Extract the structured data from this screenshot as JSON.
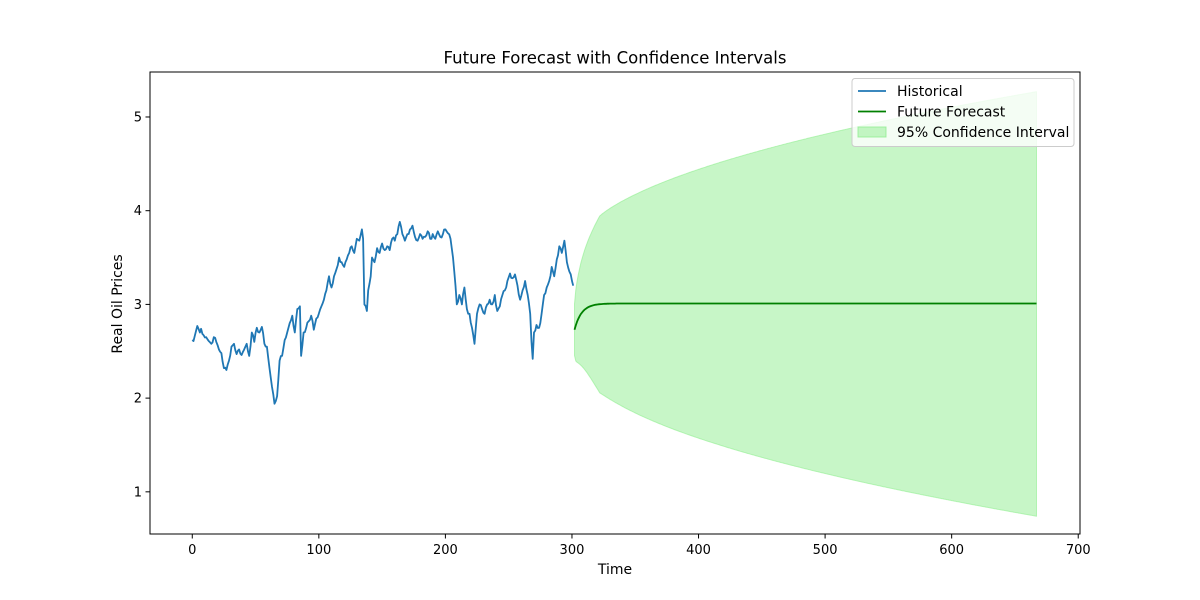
{
  "chart_data": {
    "type": "line",
    "title": "Future Forecast with Confidence Intervals",
    "xlabel": "Time",
    "ylabel": "Real Oil Prices",
    "xlim": [
      -33.4,
      701.4
    ],
    "ylim": [
      0.55,
      5.48
    ],
    "xticks": [
      0,
      100,
      200,
      300,
      400,
      500,
      600,
      700
    ],
    "yticks": [
      1,
      2,
      3,
      4,
      5
    ],
    "grid": false,
    "legend_position": "upper-right",
    "colors": {
      "historical": "#1f77b4",
      "forecast": "#008000",
      "ci_fill": "#90ee90"
    },
    "legend": [
      "Historical",
      "Future Forecast",
      "95% Confidence Interval"
    ],
    "historical_anchors": [
      [
        0,
        2.62
      ],
      [
        1,
        2.61
      ],
      [
        3,
        2.72
      ],
      [
        4,
        2.77
      ],
      [
        6,
        2.7
      ],
      [
        7,
        2.74
      ],
      [
        9,
        2.67
      ],
      [
        11,
        2.65
      ],
      [
        13,
        2.61
      ],
      [
        15,
        2.58
      ],
      [
        17,
        2.65
      ],
      [
        19,
        2.6
      ],
      [
        21,
        2.52
      ],
      [
        23,
        2.48
      ],
      [
        25,
        2.32
      ],
      [
        27,
        2.3
      ],
      [
        29,
        2.4
      ],
      [
        31,
        2.55
      ],
      [
        33,
        2.58
      ],
      [
        35,
        2.47
      ],
      [
        37,
        2.52
      ],
      [
        39,
        2.46
      ],
      [
        41,
        2.52
      ],
      [
        43,
        2.58
      ],
      [
        45,
        2.45
      ],
      [
        47,
        2.7
      ],
      [
        49,
        2.6
      ],
      [
        51,
        2.75
      ],
      [
        53,
        2.7
      ],
      [
        55,
        2.76
      ],
      [
        57,
        2.58
      ],
      [
        59,
        2.55
      ],
      [
        61,
        2.32
      ],
      [
        63,
        2.12
      ],
      [
        65,
        1.94
      ],
      [
        67,
        2.02
      ],
      [
        69,
        2.4
      ],
      [
        71,
        2.45
      ],
      [
        73,
        2.62
      ],
      [
        75,
        2.7
      ],
      [
        77,
        2.8
      ],
      [
        79,
        2.88
      ],
      [
        81,
        2.7
      ],
      [
        83,
        2.95
      ],
      [
        85,
        2.98
      ],
      [
        86,
        2.45
      ],
      [
        88,
        2.7
      ],
      [
        90,
        2.75
      ],
      [
        92,
        2.82
      ],
      [
        94,
        2.88
      ],
      [
        96,
        2.73
      ],
      [
        98,
        2.85
      ],
      [
        100,
        2.9
      ],
      [
        102,
        2.98
      ],
      [
        104,
        3.05
      ],
      [
        106,
        3.15
      ],
      [
        108,
        3.3
      ],
      [
        110,
        3.18
      ],
      [
        112,
        3.3
      ],
      [
        114,
        3.38
      ],
      [
        116,
        3.5
      ],
      [
        118,
        3.45
      ],
      [
        120,
        3.4
      ],
      [
        122,
        3.48
      ],
      [
        124,
        3.55
      ],
      [
        126,
        3.62
      ],
      [
        128,
        3.55
      ],
      [
        130,
        3.7
      ],
      [
        132,
        3.68
      ],
      [
        134,
        3.8
      ],
      [
        135,
        3.7
      ],
      [
        136,
        3.0
      ],
      [
        138,
        2.93
      ],
      [
        139,
        3.15
      ],
      [
        141,
        3.3
      ],
      [
        142,
        3.5
      ],
      [
        144,
        3.45
      ],
      [
        146,
        3.6
      ],
      [
        148,
        3.55
      ],
      [
        150,
        3.65
      ],
      [
        152,
        3.58
      ],
      [
        154,
        3.62
      ],
      [
        156,
        3.58
      ],
      [
        158,
        3.7
      ],
      [
        160,
        3.68
      ],
      [
        162,
        3.75
      ],
      [
        164,
        3.88
      ],
      [
        166,
        3.75
      ],
      [
        168,
        3.68
      ],
      [
        170,
        3.75
      ],
      [
        172,
        3.8
      ],
      [
        174,
        3.84
      ],
      [
        176,
        3.72
      ],
      [
        178,
        3.68
      ],
      [
        180,
        3.75
      ],
      [
        182,
        3.7
      ],
      [
        184,
        3.72
      ],
      [
        186,
        3.78
      ],
      [
        188,
        3.7
      ],
      [
        190,
        3.75
      ],
      [
        192,
        3.7
      ],
      [
        194,
        3.78
      ],
      [
        196,
        3.72
      ],
      [
        198,
        3.75
      ],
      [
        200,
        3.8
      ],
      [
        202,
        3.76
      ],
      [
        204,
        3.7
      ],
      [
        206,
        3.5
      ],
      [
        208,
        3.2
      ],
      [
        209,
        3.0
      ],
      [
        211,
        3.1
      ],
      [
        213,
        3.0
      ],
      [
        215,
        3.18
      ],
      [
        217,
        2.95
      ],
      [
        219,
        2.9
      ],
      [
        221,
        2.75
      ],
      [
        223,
        2.58
      ],
      [
        225,
        2.9
      ],
      [
        227,
        3.0
      ],
      [
        229,
        2.95
      ],
      [
        231,
        2.9
      ],
      [
        233,
        3.0
      ],
      [
        235,
        3.05
      ],
      [
        237,
        3.0
      ],
      [
        239,
        3.1
      ],
      [
        241,
        2.93
      ],
      [
        243,
        2.98
      ],
      [
        245,
        3.1
      ],
      [
        247,
        3.15
      ],
      [
        249,
        3.25
      ],
      [
        251,
        3.33
      ],
      [
        253,
        3.28
      ],
      [
        255,
        3.32
      ],
      [
        257,
        3.2
      ],
      [
        259,
        3.05
      ],
      [
        261,
        3.15
      ],
      [
        263,
        3.25
      ],
      [
        265,
        3.1
      ],
      [
        267,
        2.9
      ],
      [
        268,
        2.6
      ],
      [
        269,
        2.42
      ],
      [
        270,
        2.7
      ],
      [
        272,
        2.78
      ],
      [
        274,
        2.75
      ],
      [
        276,
        2.9
      ],
      [
        278,
        3.1
      ],
      [
        280,
        3.18
      ],
      [
        282,
        3.25
      ],
      [
        284,
        3.4
      ],
      [
        286,
        3.3
      ],
      [
        288,
        3.48
      ],
      [
        290,
        3.62
      ],
      [
        292,
        3.55
      ],
      [
        294,
        3.68
      ],
      [
        296,
        3.45
      ],
      [
        298,
        3.35
      ],
      [
        300,
        3.25
      ],
      [
        301,
        3.2
      ]
    ],
    "forecast": {
      "start": 302,
      "end": 667,
      "start_value": 2.73,
      "mean": 3.01,
      "decay": 0.18,
      "ci_lower_end": 0.74,
      "ci_upper_end": 5.27
    }
  }
}
